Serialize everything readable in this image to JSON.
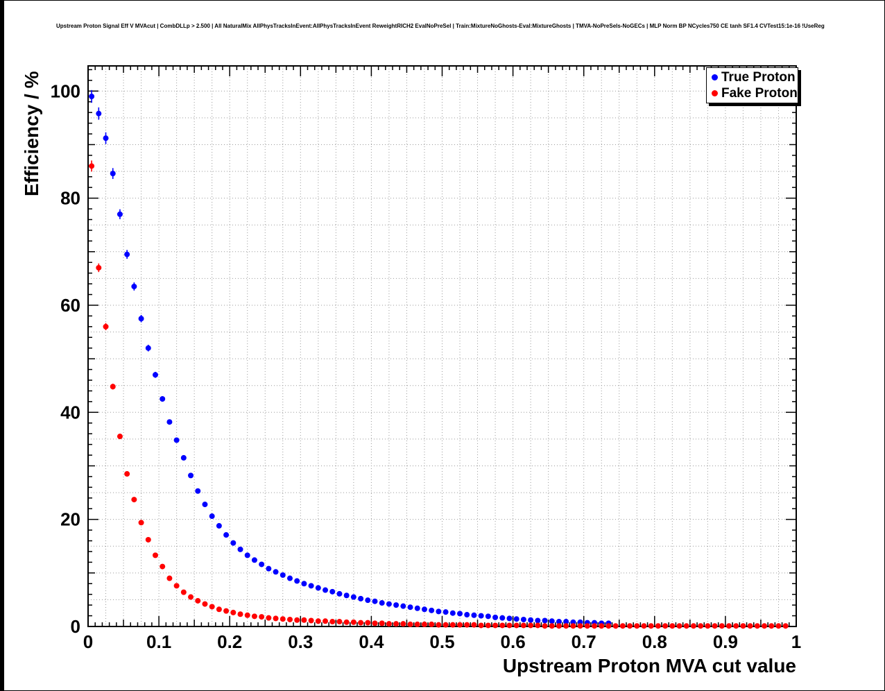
{
  "title": "Upstream Proton Signal Eff V MVAcut | CombDLLp > 2.500 | All NaturalMix AllPhysTracksInEvent:AllPhysTracksInEvent ReweightRICH2 EvalNoPreSel | Train:MixtureNoGhosts-Eval:MixtureGhosts | TMVA-NoPreSels-NoGECs | MLP Norm BP NCycles750 CE tanh SF1.4 CVTest15:1e-16 !UseReg",
  "chart_data": {
    "type": "scatter",
    "title": "Upstream Proton Signal Eff V MVAcut | CombDLLp > 2.500 | All NaturalMix AllPhysTracksInEvent:AllPhysTracksInEvent ReweightRICH2 EvalNoPreSel | Train:MixtureNoGhosts-Eval:MixtureGhosts | TMVA-NoPreSels-NoGECs | MLP Norm BP NCycles750 CE tanh SF1.4 CVTest15:1e-16 !UseReg",
    "xlabel": "Upstream Proton MVA cut value",
    "ylabel": "Efficiency / %",
    "xlim": [
      0,
      1
    ],
    "ylim": [
      0,
      104.7
    ],
    "grid": true,
    "grid_spacing": {
      "x": 0.025,
      "y": 5
    },
    "x_tick_values": [
      0,
      0.1,
      0.2,
      0.3,
      0.4,
      0.5,
      0.6,
      0.7,
      0.8,
      0.9,
      1
    ],
    "x_tick_labels": [
      "0",
      "0.1",
      "0.2",
      "0.3",
      "0.4",
      "0.5",
      "0.6",
      "0.7",
      "0.8",
      "0.9",
      "1"
    ],
    "y_tick_values": [
      0,
      20,
      40,
      60,
      80,
      100
    ],
    "y_tick_labels": [
      "0",
      "20",
      "40",
      "60",
      "80",
      "100"
    ],
    "legend_position": "top-right",
    "x_start": 0.005,
    "x_step": 0.01,
    "yerr_model": {
      "rel": 0.012,
      "min": 0.3
    },
    "series": [
      {
        "name": "True Proton",
        "color": "#0000ff",
        "marker": "dot",
        "y": [
          99.0,
          95.8,
          91.2,
          84.6,
          77.0,
          69.5,
          63.5,
          57.5,
          52.0,
          47.0,
          42.5,
          38.2,
          34.8,
          31.5,
          28.2,
          25.3,
          22.8,
          20.6,
          18.8,
          17.1,
          15.6,
          14.4,
          13.3,
          12.4,
          11.6,
          10.8,
          10.2,
          9.6,
          9.0,
          8.5,
          8.0,
          7.6,
          7.2,
          6.8,
          6.5,
          6.1,
          5.8,
          5.5,
          5.2,
          4.9,
          4.7,
          4.4,
          4.2,
          4.0,
          3.8,
          3.6,
          3.4,
          3.2,
          3.0,
          2.8,
          2.7,
          2.5,
          2.4,
          2.2,
          2.1,
          2.0,
          1.9,
          1.7,
          1.6,
          1.5,
          1.4,
          1.3,
          1.2,
          1.1,
          1.1,
          1.0,
          0.9,
          0.9,
          0.8,
          0.8,
          0.7,
          0.7,
          0.6,
          0.6
        ]
      },
      {
        "name": "Fake Proton",
        "color": "#ff0000",
        "marker": "dot",
        "y": [
          86.0,
          67.0,
          56.0,
          44.8,
          35.5,
          28.5,
          23.7,
          19.4,
          16.2,
          13.3,
          11.2,
          9.0,
          7.6,
          6.4,
          5.5,
          4.8,
          4.2,
          3.7,
          3.2,
          2.9,
          2.6,
          2.3,
          2.1,
          1.9,
          1.8,
          1.6,
          1.5,
          1.4,
          1.3,
          1.2,
          1.2,
          1.1,
          1.0,
          1.0,
          0.9,
          0.9,
          0.8,
          0.8,
          0.7,
          0.7,
          0.6,
          0.6,
          0.5,
          0.5,
          0.5,
          0.4,
          0.4,
          0.4,
          0.4,
          0.3,
          0.3,
          0.3,
          0.3,
          0.3,
          0.3,
          0.2,
          0.2,
          0.2,
          0.2,
          0.2,
          0.2,
          0.2,
          0.2,
          0.2,
          0.1,
          0.1,
          0.1,
          0.1,
          0.1,
          0.1,
          0.1,
          0.1,
          0.1,
          0.1,
          0.1,
          0.1,
          0.1,
          0.1,
          0.1,
          0.1,
          0.1,
          0.1,
          0.1,
          0.1,
          0.1,
          0.1,
          0.1,
          0.1,
          0.1,
          0.1,
          0.1,
          0.1,
          0.1,
          0.1,
          0.1,
          0.1,
          0.1,
          0.1,
          0.1
        ]
      }
    ]
  }
}
